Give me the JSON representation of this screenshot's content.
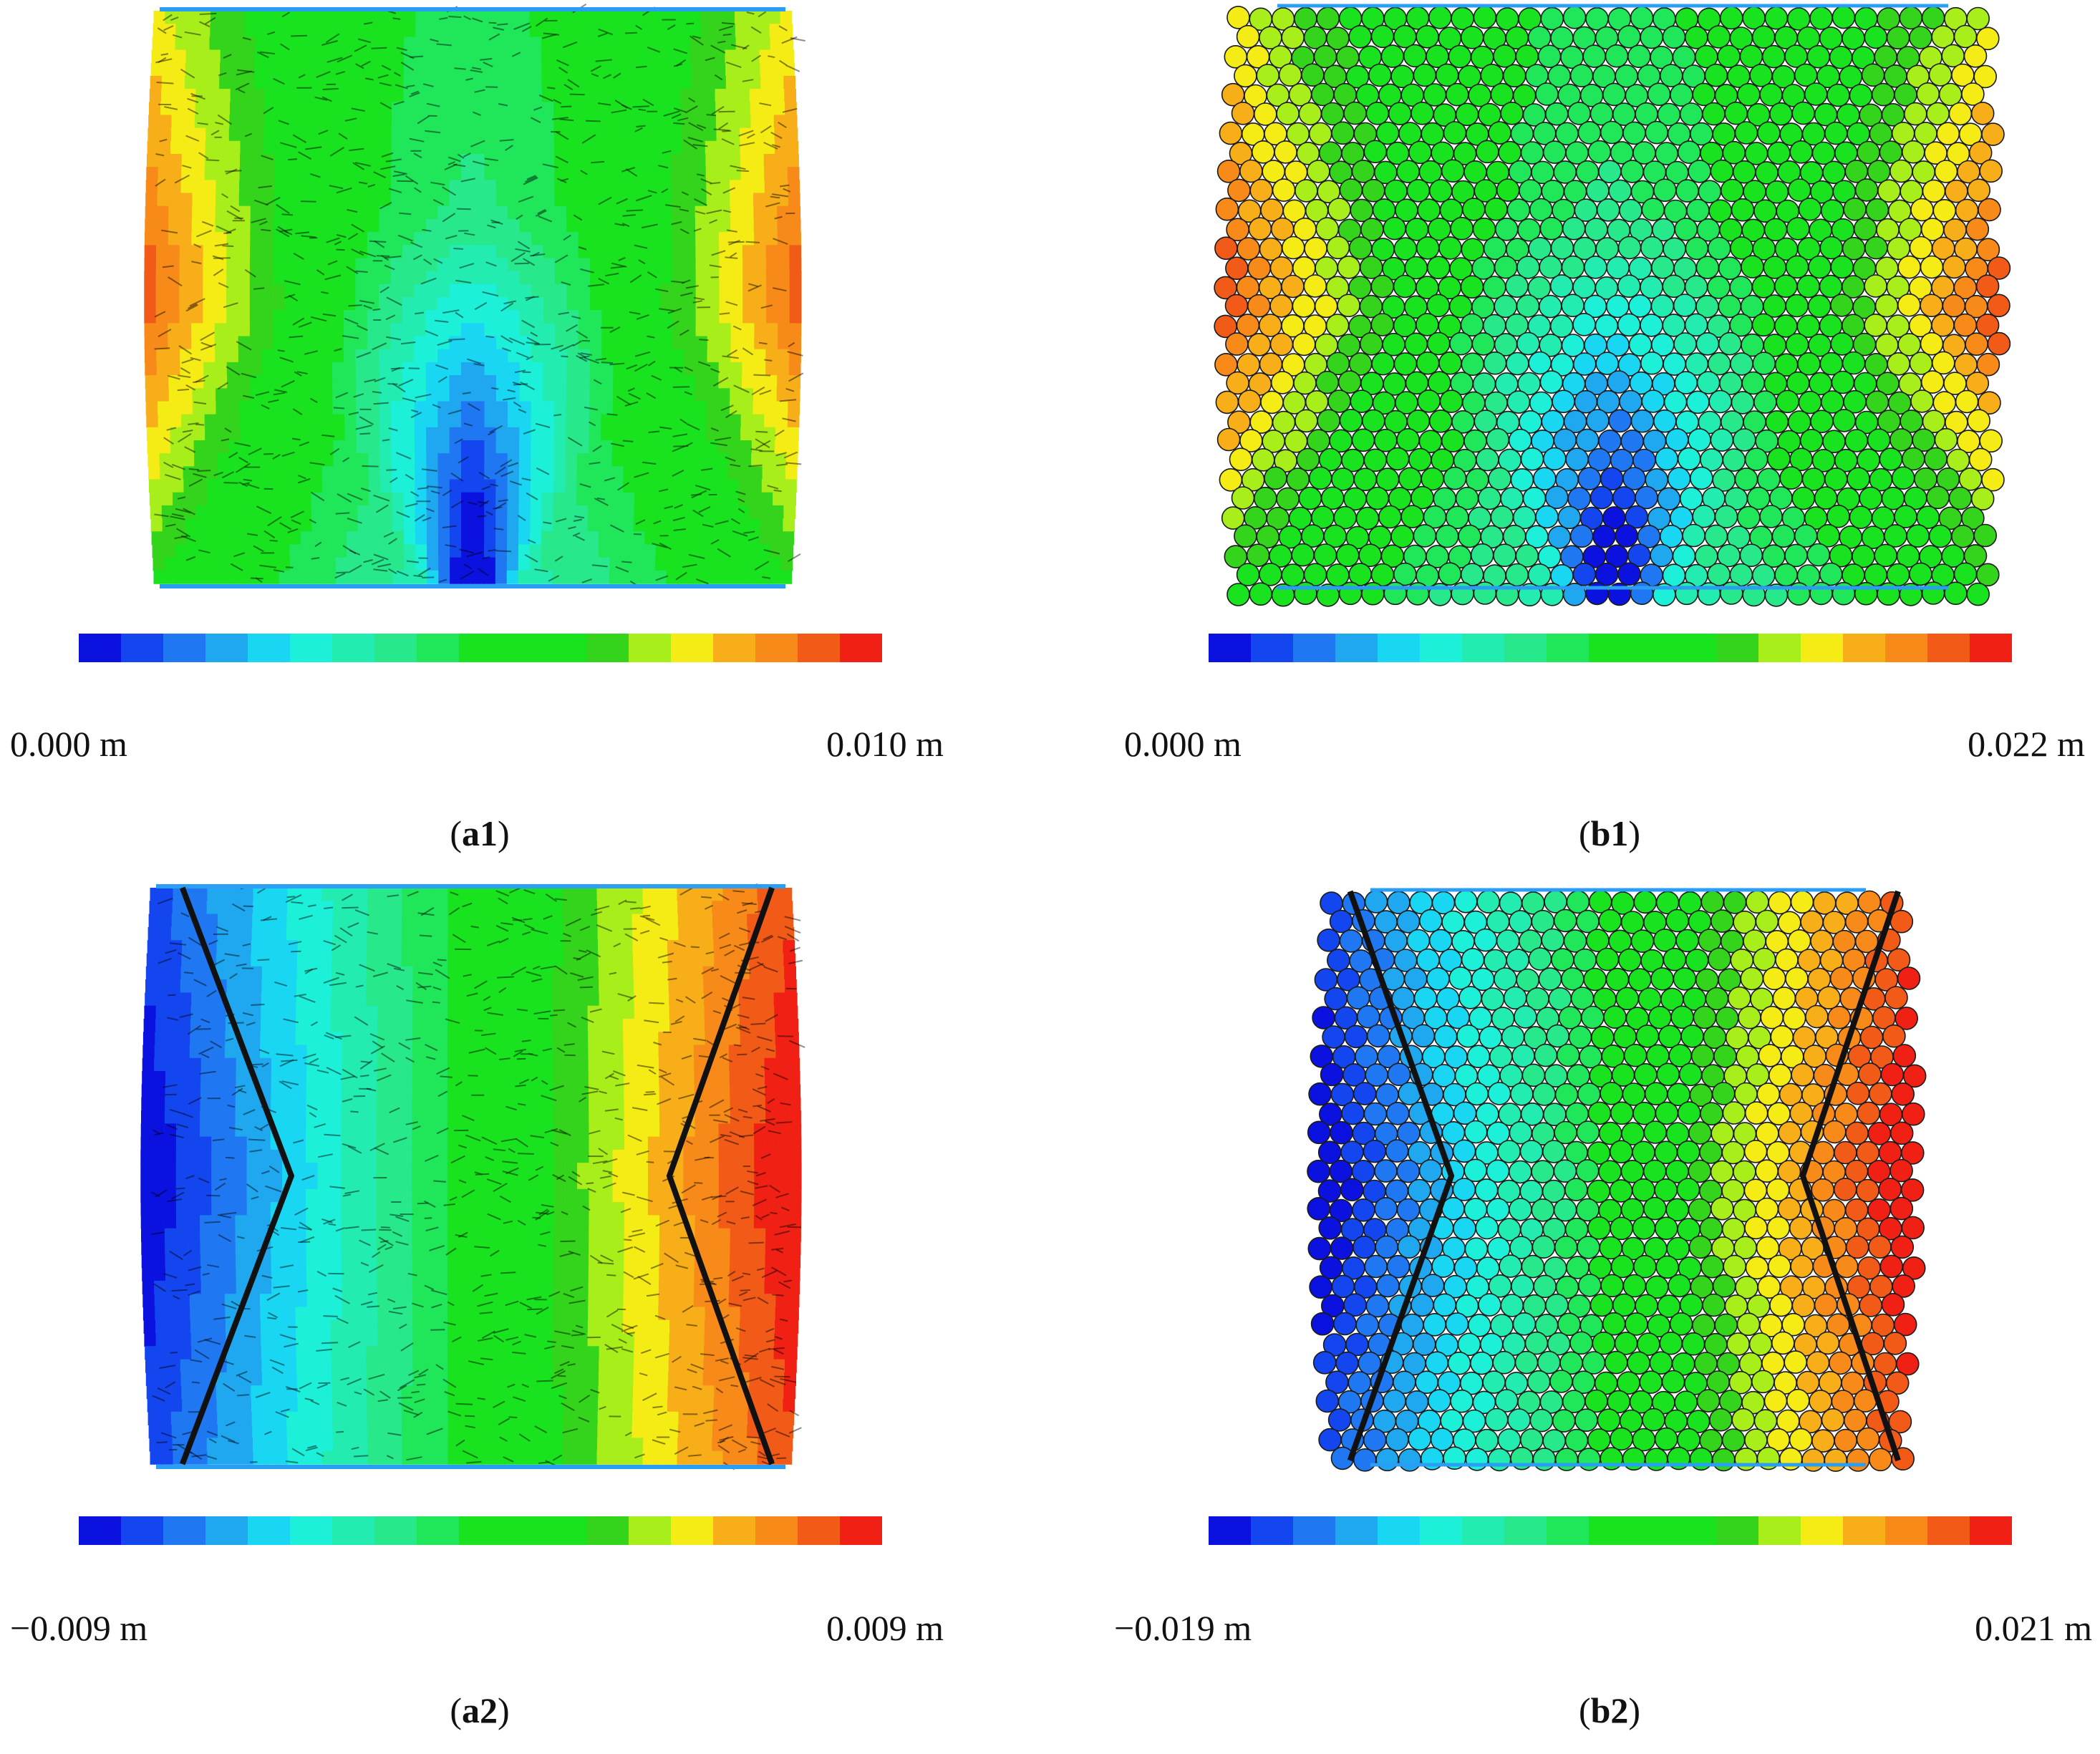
{
  "panels": [
    {
      "id": "a1",
      "caption_id": "a1",
      "min_label": "0.000 m",
      "max_label": "0.010 m",
      "style": "dense",
      "field": "vertical",
      "failure_lines": false
    },
    {
      "id": "b1",
      "caption_id": "b1",
      "min_label": "0.000 m",
      "max_label": "0.022 m",
      "style": "particles",
      "field": "vertical",
      "failure_lines": false
    },
    {
      "id": "a2",
      "caption_id": "a2",
      "min_label": "−0.009 m",
      "max_label": "0.009 m",
      "style": "dense",
      "field": "horizontal",
      "failure_lines": true
    },
    {
      "id": "b2",
      "caption_id": "b2",
      "min_label": "−0.019 m",
      "max_label": "0.021 m",
      "style": "particles",
      "field": "horizontal",
      "failure_lines": true
    }
  ],
  "colormap": [
    "#0b12e0",
    "#1446f0",
    "#1f78f2",
    "#1fa8f0",
    "#19d6f2",
    "#1cf0d8",
    "#22ecb0",
    "#27e88a",
    "#20e65a",
    "#19e21e",
    "#19e21e",
    "#19e21e",
    "#34d41c",
    "#a8ee1a",
    "#f4ec14",
    "#f7ae18",
    "#f78a18",
    "#f25a18",
    "#f02014"
  ],
  "colors": {
    "platen": "#2a9df4",
    "failure_line": "#111111",
    "particle_edge": "#1a1a1a"
  }
}
